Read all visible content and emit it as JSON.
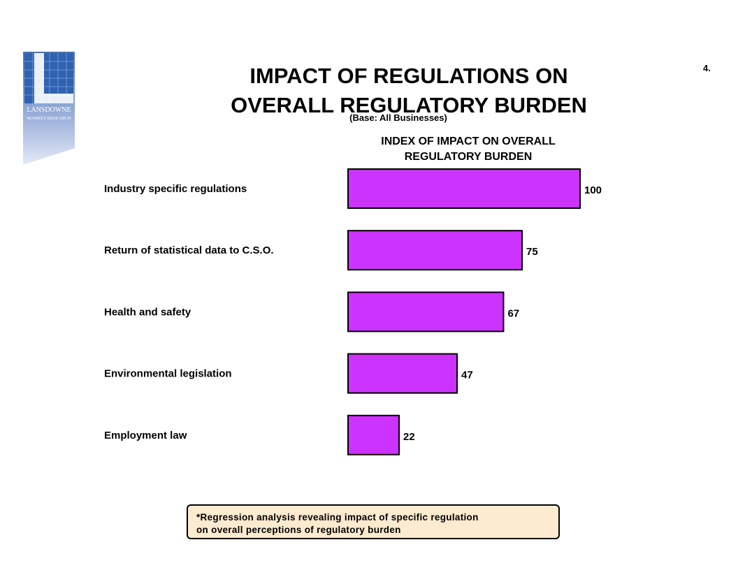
{
  "page": {
    "number": "4.",
    "title_line1": "IMPACT OF REGULATIONS ON",
    "title_line2": "OVERALL REGULATORY BURDEN",
    "subtitle": "(Base:  All Businesses)",
    "logo": {
      "line1": "LANSDOWNE",
      "line2": "MARKET RESEARCH"
    },
    "footnote_line1": "*Regression analysis revealing impact of specific regulation",
    "footnote_line2": "on overall perceptions of regulatory burden"
  },
  "chart_data": {
    "type": "bar",
    "orientation": "horizontal",
    "header_line1": "INDEX OF IMPACT ON OVERALL",
    "header_line2": "REGULATORY BURDEN",
    "categories": [
      "Industry specific regulations",
      "Return of statistical data to C.S.O.",
      "Health and safety",
      "Environmental legislation",
      "Employment law"
    ],
    "values": [
      100,
      75,
      67,
      47,
      22
    ],
    "bar_color": "#cc33ff",
    "grid": false,
    "axes_visible": false
  }
}
